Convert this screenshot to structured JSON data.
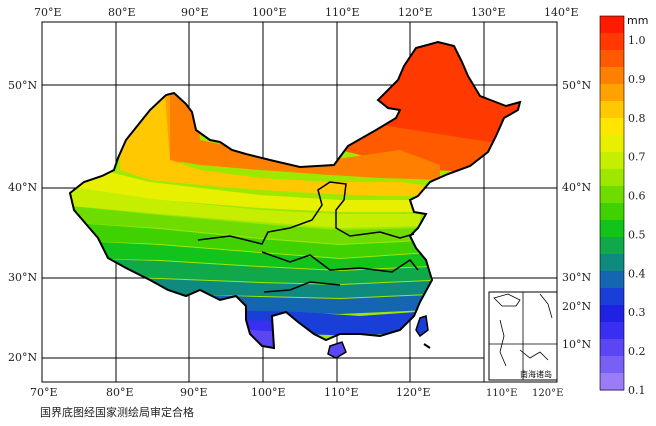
{
  "map": {
    "lon_labels_top": [
      "70°E",
      "80°E",
      "90°E",
      "100°E",
      "110°E",
      "120°E",
      "130°E",
      "140°E"
    ],
    "lon_labels_bottom": [
      "70°E",
      "80°E",
      "90°E",
      "100°E",
      "110°E",
      "120°E"
    ],
    "lat_labels_left": [
      "50°N",
      "40°N",
      "30°N",
      "20°N"
    ],
    "lat_labels_right": [
      "50°N",
      "40°N",
      "30°N",
      "20°N",
      "10°N"
    ],
    "inset": {
      "title": "南海诸岛",
      "lon_labels": [
        "110°E",
        "120°E"
      ]
    },
    "approval_note": "国界底图经国家测绘局审定合格"
  },
  "legend": {
    "unit": "mm",
    "tick_labels": [
      "1.0",
      "0.9",
      "0.8",
      "0.7",
      "0.6",
      "0.5",
      "0.4",
      "0.3",
      "0.2",
      "0.1"
    ],
    "colors": [
      "#ff1a00",
      "#ff3a00",
      "#ff5a00",
      "#ff7f00",
      "#ffa200",
      "#ffc800",
      "#ffe600",
      "#e8f000",
      "#c6ee00",
      "#9ee800",
      "#6fdc00",
      "#3fd100",
      "#11c31a",
      "#0fa94c",
      "#0e8b7e",
      "#1466b3",
      "#1a3fd9",
      "#1f22e0",
      "#3a2ef0",
      "#5a46f2",
      "#7860f4",
      "#9a7cf6"
    ]
  }
}
